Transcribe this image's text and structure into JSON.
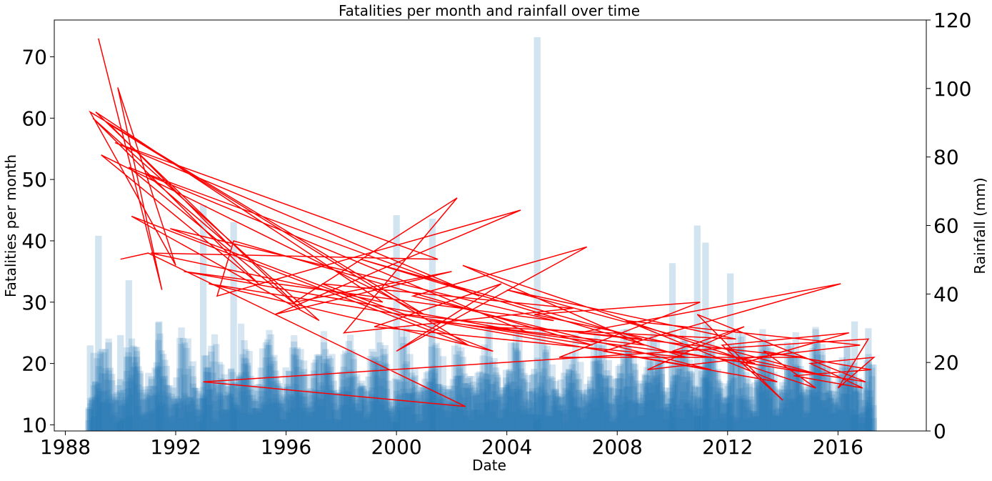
{
  "chart_data": {
    "type": "line+bar",
    "title": "Fatalities per month and rainfall over time",
    "xlabel": "Date",
    "ylabel_left": "Fatalities per month",
    "ylabel_right": "Rainfall (mm)",
    "x_ticks": [
      "1988",
      "1992",
      "1996",
      "2000",
      "2004",
      "2008",
      "2012",
      "2016"
    ],
    "x_range": [
      1987.6,
      2019.2
    ],
    "ylim_left": [
      9,
      76
    ],
    "y_ticks_left": [
      10,
      20,
      30,
      40,
      50,
      60,
      70
    ],
    "ylim_right": [
      0,
      120
    ],
    "y_ticks_right": [
      0,
      20,
      40,
      60,
      80,
      100,
      120
    ],
    "legend": "none",
    "grid": false,
    "series": [
      {
        "name": "Fatalities per month",
        "axis": "left",
        "type": "line",
        "color": "#ff0000",
        "note": "monthly values plotted in unsorted date order; trend declines from ~35 (1989) to ~20 (2017)",
        "points": [
          [
            1989.2,
            73
          ],
          [
            1991.5,
            32
          ],
          [
            1989.9,
            65
          ],
          [
            1992.0,
            36
          ],
          [
            1988.9,
            61
          ],
          [
            2001.0,
            28
          ],
          [
            1989.3,
            54
          ],
          [
            1995.0,
            33
          ],
          [
            1989.0,
            60
          ],
          [
            1997.2,
            27
          ],
          [
            1990.4,
            44
          ],
          [
            2002.6,
            23
          ],
          [
            1989.6,
            59
          ],
          [
            1994.0,
            39
          ],
          [
            1990.9,
            51
          ],
          [
            2003.0,
            31
          ],
          [
            1989.8,
            56
          ],
          [
            2001.5,
            37
          ],
          [
            1991.1,
            38
          ],
          [
            1999.5,
            30
          ],
          [
            1989.1,
            61
          ],
          [
            1996.5,
            29
          ],
          [
            1990.3,
            52
          ],
          [
            2004.8,
            25
          ],
          [
            1992.3,
            35
          ],
          [
            2005.7,
            27
          ],
          [
            1991.8,
            42
          ],
          [
            2003.5,
            22
          ],
          [
            1993.2,
            33
          ],
          [
            2007.1,
            23
          ],
          [
            1994.1,
            40
          ],
          [
            1993.5,
            31
          ],
          [
            2004.5,
            45
          ],
          [
            1995.6,
            28
          ],
          [
            2002.0,
            35
          ],
          [
            1996.3,
            30
          ],
          [
            2002.2,
            47
          ],
          [
            1998.1,
            25
          ],
          [
            2006.4,
            29
          ],
          [
            1997.3,
            33
          ],
          [
            2000.3,
            28
          ],
          [
            2008.9,
            24
          ],
          [
            1998.7,
            37
          ],
          [
            2010.5,
            21
          ],
          [
            1999.2,
            26
          ],
          [
            2003.8,
            33
          ],
          [
            2000.0,
            22
          ],
          [
            2006.9,
            39
          ],
          [
            2000.6,
            31
          ],
          [
            2011.4,
            19
          ],
          [
            2001.2,
            27
          ],
          [
            2009.0,
            23
          ],
          [
            2002.4,
            36
          ],
          [
            2013.0,
            20
          ],
          [
            2003.1,
            26
          ],
          [
            2012.3,
            24
          ],
          [
            2004.0,
            32
          ],
          [
            2015.5,
            18
          ],
          [
            2005.0,
            28
          ],
          [
            2011.0,
            30
          ],
          [
            2005.9,
            21
          ],
          [
            2014.8,
            21
          ],
          [
            2006.6,
            25
          ],
          [
            2016.1,
            33
          ],
          [
            2007.5,
            22
          ],
          [
            2013.8,
            17
          ],
          [
            2008.3,
            27
          ],
          [
            2016.8,
            23
          ],
          [
            2009.1,
            19
          ],
          [
            2012.6,
            26
          ],
          [
            2010.0,
            22
          ],
          [
            2017.0,
            17
          ],
          [
            2010.9,
            28
          ],
          [
            2014.0,
            14
          ],
          [
            2011.8,
            23
          ],
          [
            2016.4,
            25
          ],
          [
            2012.5,
            20
          ],
          [
            2015.2,
            16
          ],
          [
            2013.3,
            22
          ],
          [
            2017.2,
            19
          ],
          [
            2014.4,
            18
          ],
          [
            2016.9,
            16
          ],
          [
            2015.0,
            20
          ],
          [
            2017.3,
            21
          ],
          [
            2016.0,
            16
          ],
          [
            2017.1,
            24
          ],
          [
            1993.0,
            17
          ],
          [
            2002.5,
            13
          ],
          [
            1991.0,
            38
          ],
          [
            1990.0,
            37
          ]
        ]
      },
      {
        "name": "Rainfall (mm)",
        "axis": "right",
        "type": "bar",
        "color": "#1f77b4",
        "note": "daily rainfall bars, heavily overlapped; notable peaks listed",
        "peaks": [
          [
            1988.9,
            25
          ],
          [
            1989.2,
            57
          ],
          [
            1990.0,
            28
          ],
          [
            1990.3,
            44
          ],
          [
            1991.4,
            32
          ],
          [
            1993.0,
            66
          ],
          [
            1994.1,
            61
          ],
          [
            2000.0,
            63
          ],
          [
            2001.3,
            62
          ],
          [
            2005.1,
            115
          ],
          [
            2010.0,
            49
          ],
          [
            2010.9,
            60
          ],
          [
            2011.2,
            55
          ],
          [
            2012.1,
            46
          ],
          [
            2016.6,
            32
          ],
          [
            2017.1,
            30
          ]
        ]
      }
    ]
  }
}
